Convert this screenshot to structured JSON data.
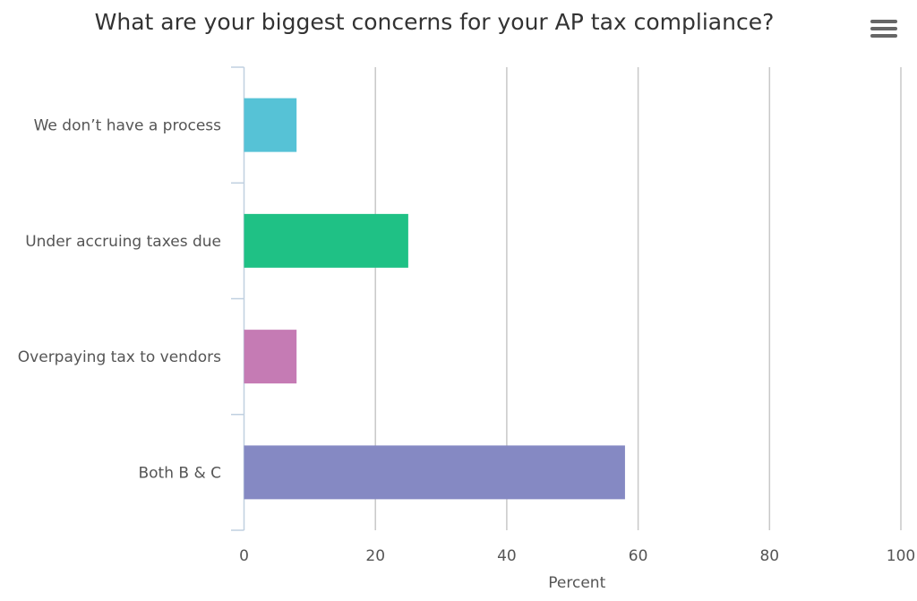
{
  "chart_data": {
    "type": "bar",
    "orientation": "horizontal",
    "title": "What are your biggest concerns for your AP tax compliance?",
    "categories": [
      "We don’t have a process",
      "Under accruing taxes due",
      "Overpaying tax to vendors",
      "Both B & C"
    ],
    "values": [
      8,
      25,
      8,
      58
    ],
    "colors": [
      "#56c2d6",
      "#1fc185",
      "#c57bb4",
      "#8589c3"
    ],
    "xlabel": "Percent",
    "ylabel": "",
    "xlim": [
      0,
      100
    ],
    "xticks": [
      0,
      20,
      40,
      60,
      80,
      100
    ],
    "grid": true,
    "legend": "none"
  },
  "menu_icon": "hamburger-menu-icon"
}
